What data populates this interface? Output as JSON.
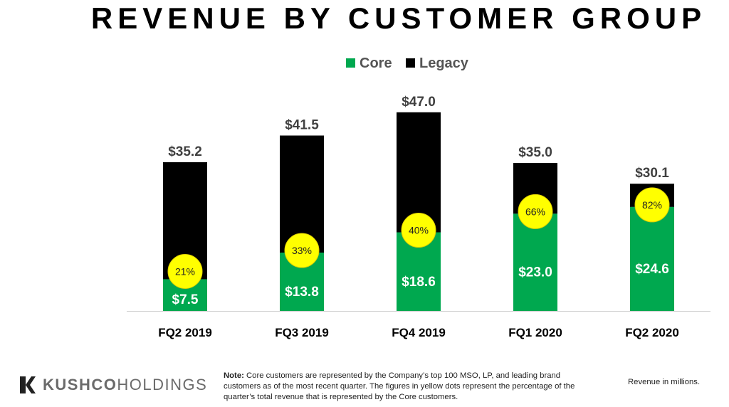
{
  "chart_data": {
    "type": "bar",
    "stacked": true,
    "title": "REVENUE BY CUSTOMER GROUP",
    "categories": [
      "FQ2 2019",
      "FQ3 2019",
      "FQ4 2019",
      "FQ1 2020",
      "FQ2 2020"
    ],
    "series": [
      {
        "name": "Core",
        "color": "#00a84f",
        "values": [
          7.5,
          13.8,
          18.6,
          23.0,
          24.6
        ],
        "labels": [
          "$7.5",
          "$13.8",
          "$18.6",
          "$23.0",
          "$24.6"
        ]
      },
      {
        "name": "Legacy",
        "color": "#000000",
        "values": [
          27.7,
          27.7,
          28.4,
          12.0,
          5.5
        ]
      }
    ],
    "totals": [
      35.2,
      41.5,
      47.0,
      35.0,
      30.1
    ],
    "total_labels": [
      "$35.2",
      "$41.5",
      "$47.0",
      "$35.0",
      "$30.1"
    ],
    "core_share_labels": [
      "21%",
      "33%",
      "40%",
      "66%",
      "82%"
    ],
    "dot_color": "#ffff00",
    "ylim": [
      0,
      50
    ],
    "grid": false,
    "legend_position": "top-center",
    "xlabel": "",
    "ylabel": ""
  },
  "footer": {
    "logo_bold": "KUSHCO",
    "logo_light": "HOLDINGS",
    "note_label": "Note:",
    "note_text": " Core customers are represented by the Company’s top 100 MSO, LP, and leading brand customers as of the most recent quarter. The figures in yellow dots represent the percentage of the quarter’s total revenue that is represented by the Core customers.",
    "units": "Revenue in millions."
  }
}
